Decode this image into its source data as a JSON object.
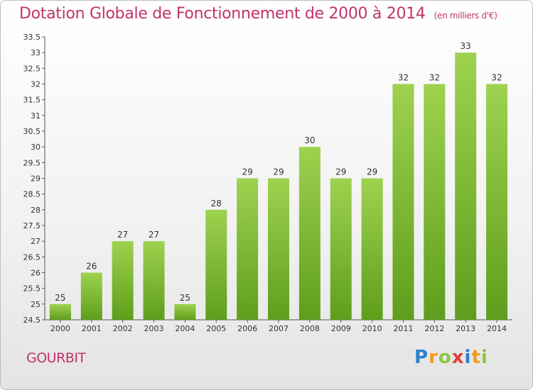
{
  "header": {
    "title": "Dotation Globale de Fonctionnement de 2000 à 2014",
    "unit": "(en milliers d'€)"
  },
  "footer": {
    "commune": "GOURBIT",
    "logo_letters": [
      "P",
      "r",
      "o",
      "x",
      "i",
      "t",
      "i"
    ]
  },
  "colors": {
    "title": "#c0346b",
    "bar_top": "#9ed24f",
    "bar_bottom": "#5e9e1c",
    "logo": [
      "#2f7fcf",
      "#f29a1d",
      "#8cc63f",
      "#e23c3c",
      "#2f7fcf",
      "#f29a1d",
      "#8cc63f"
    ]
  },
  "chart_data": {
    "type": "bar",
    "title": "Dotation Globale de Fonctionnement de 2000 à 2014",
    "categories": [
      "2000",
      "2001",
      "2002",
      "2003",
      "2004",
      "2005",
      "2006",
      "2007",
      "2008",
      "2009",
      "2010",
      "2011",
      "2012",
      "2013",
      "2014"
    ],
    "values": [
      25,
      26,
      27,
      27,
      25,
      28,
      29,
      29,
      30,
      29,
      29,
      32,
      32,
      33,
      32
    ],
    "data_labels": [
      "25",
      "26",
      "27",
      "27",
      "25",
      "28",
      "29",
      "29",
      "30",
      "29",
      "29",
      "32",
      "32",
      "33",
      "32"
    ],
    "ylim": [
      24.5,
      33.5
    ],
    "yticks": [
      "24.5",
      "25",
      "25.5",
      "26",
      "26.5",
      "27",
      "27.5",
      "28",
      "28.5",
      "29",
      "29.5",
      "30",
      "30.5",
      "31",
      "31.5",
      "32",
      "32.5",
      "33",
      "33.5"
    ],
    "grid": false,
    "legend": "none"
  }
}
